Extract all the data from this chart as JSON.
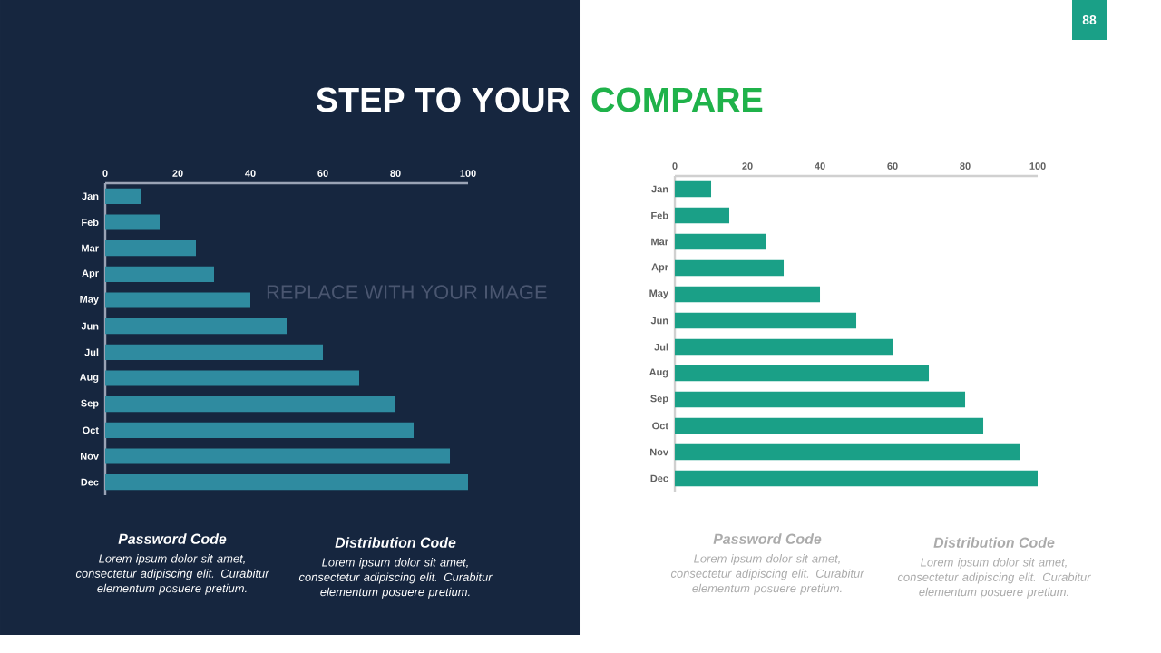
{
  "chart_data": [
    {
      "type": "bar",
      "orientation": "horizontal",
      "title": "STEP TO YOUR",
      "categories": [
        "Jan",
        "Feb",
        "Mar",
        "Apr",
        "May",
        "Jun",
        "Jul",
        "Aug",
        "Sep",
        "Oct",
        "Nov",
        "Dec"
      ],
      "values": [
        10,
        15,
        25,
        30,
        40,
        50,
        60,
        70,
        80,
        85,
        95,
        100
      ],
      "color": "#2f8ba0",
      "xlim": [
        0,
        100
      ],
      "xticks": [
        0,
        20,
        40,
        60,
        80,
        100
      ],
      "annotations": [
        "Password  Code",
        "Lorem ipsum dolor sit amet, consectetur adipiscing elit. Curabitur elementum posuere pretium.",
        "Distribution Code",
        "Lorem ipsum dolor sit amet, consectetur adipiscing elit. Curabitur elementum posuere pretium.",
        "REPLACE WITH YOUR IMAGE"
      ]
    },
    {
      "type": "bar",
      "orientation": "horizontal",
      "title": "COMPARE",
      "categories": [
        "Jan",
        "Feb",
        "Mar",
        "Apr",
        "May",
        "Jun",
        "Jul",
        "Aug",
        "Sep",
        "Oct",
        "Nov",
        "Dec"
      ],
      "values": [
        10,
        15,
        25,
        30,
        40,
        50,
        60,
        70,
        80,
        85,
        95,
        100
      ],
      "color": "#1aa087",
      "xlim": [
        0,
        100
      ],
      "xticks": [
        0,
        20,
        40,
        60,
        80,
        100
      ],
      "annotations": [
        "Password  Code",
        "Lorem ipsum dolor sit amet, consectetur adipiscing elit. Curabitur elementum posuere pretium.",
        "Distribution Code",
        "Lorem ipsum dolor sit amet, consectetur adipiscing elit. Curabitur elementum posuere pretium.",
        "88"
      ]
    }
  ]
}
